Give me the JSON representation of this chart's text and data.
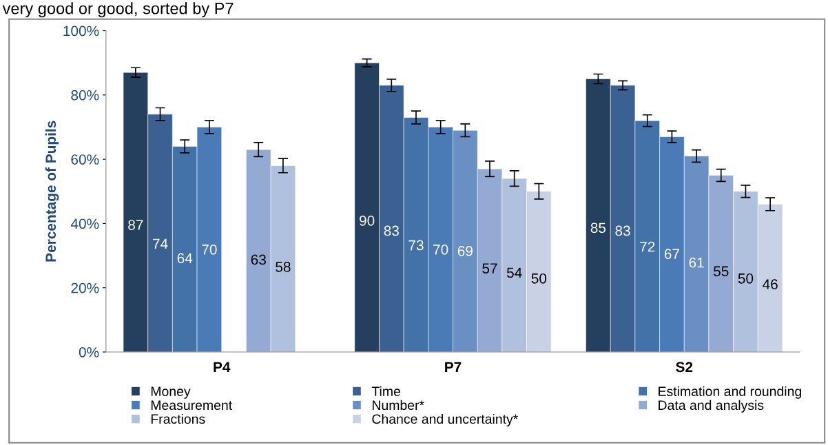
{
  "chart_data": {
    "type": "bar",
    "title": "very good or good, sorted by P7",
    "ylabel": "Percentage of Pupils",
    "categories": [
      "P4",
      "P7",
      "S2"
    ],
    "ylim": [
      0,
      100
    ],
    "yticks": [
      {
        "value": 0,
        "label": "0%"
      },
      {
        "value": 20,
        "label": "20%"
      },
      {
        "value": 40,
        "label": "40%"
      },
      {
        "value": 60,
        "label": "60%"
      },
      {
        "value": 80,
        "label": "80%"
      },
      {
        "value": 100,
        "label": "100%"
      }
    ],
    "grid": false,
    "legend": "bottom",
    "data_labels": true,
    "series": [
      {
        "name": "Money",
        "color": "#253f5f",
        "values": [
          87,
          90,
          85
        ],
        "errors": [
          1.5,
          1.2,
          1.5
        ]
      },
      {
        "name": "Time",
        "color": "#3a6191",
        "values": [
          74,
          83,
          83
        ],
        "errors": [
          2,
          1.9,
          1.4
        ]
      },
      {
        "name": "Estimation and rounding",
        "color": "#4372a8",
        "values": [
          64,
          73,
          72
        ],
        "errors": [
          2,
          2,
          1.8
        ]
      },
      {
        "name": "Measurement",
        "color": "#4a7bb7",
        "values": [
          70,
          70,
          67
        ],
        "errors": [
          2,
          2,
          1.8
        ]
      },
      {
        "name": "Number*",
        "color": "#6a8fc3",
        "values": [
          null,
          69,
          61
        ],
        "errors": [
          null,
          2,
          1.9
        ]
      },
      {
        "name": "Data and analysis",
        "color": "#94aad2",
        "values": [
          63,
          57,
          55
        ],
        "errors": [
          2.2,
          2.4,
          1.9
        ]
      },
      {
        "name": "Fractions",
        "color": "#b0c1de",
        "values": [
          58,
          54,
          50
        ],
        "errors": [
          2.2,
          2.4,
          1.9
        ]
      },
      {
        "name": "Chance and uncertainty*",
        "color": "#c8d1e6",
        "values": [
          null,
          50,
          46
        ],
        "errors": [
          null,
          2.4,
          2
        ]
      }
    ]
  }
}
